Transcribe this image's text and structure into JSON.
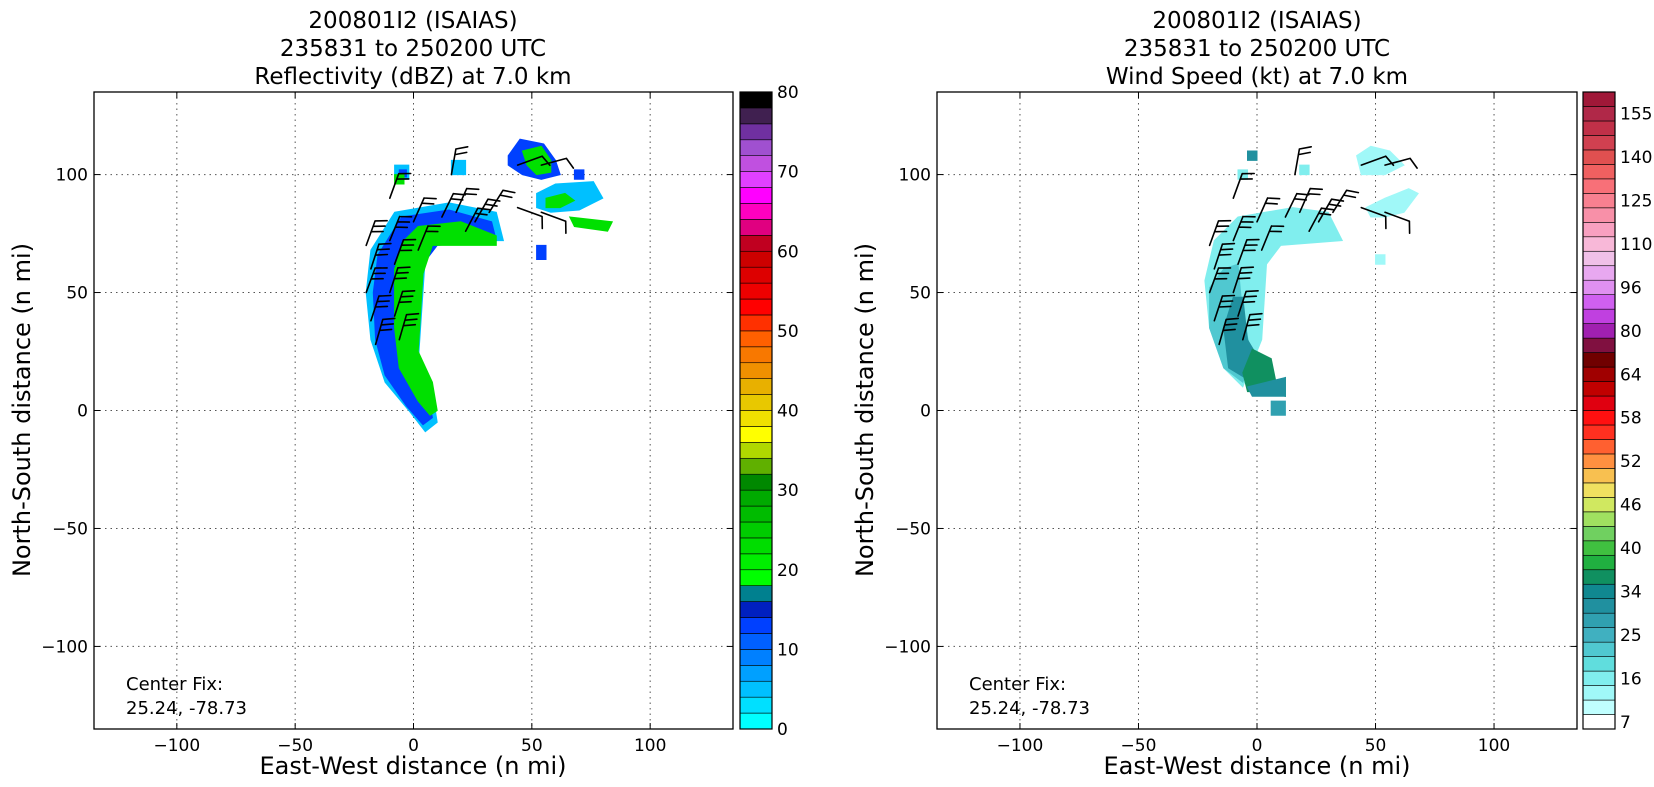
{
  "chart_data": [
    {
      "type": "heatmap",
      "panel": "reflectivity",
      "title_lines": [
        "200801I2 (ISAIAS)",
        "235831 to 250200 UTC",
        "Reflectivity (dBZ) at 7.0 km"
      ],
      "xlabel": "East-West distance (n mi)",
      "ylabel": "North-South distance (n mi)",
      "xlim": [
        -135,
        135
      ],
      "ylim": [
        -135,
        135
      ],
      "xticks": [
        -100,
        -50,
        0,
        50,
        100
      ],
      "yticks": [
        -100,
        -50,
        0,
        50,
        100
      ],
      "xtick_labels": [
        "−100",
        "−50",
        "0",
        "50",
        "100"
      ],
      "ytick_labels": [
        "−100",
        "−50",
        "0",
        "50",
        "100"
      ],
      "grid": true,
      "annotation_lines": [
        "Center Fix:",
        "25.24, -78.73"
      ],
      "colorbar": {
        "colors": [
          "#00ffff",
          "#00e0ff",
          "#00c0ff",
          "#00a0ff",
          "#0080ff",
          "#0060ff",
          "#0040ff",
          "#0020c0",
          "#00808f",
          "#00ff00",
          "#00ee00",
          "#00dd00",
          "#00cc00",
          "#00bb00",
          "#00aa00",
          "#008800",
          "#60b000",
          "#b0d800",
          "#ffff00",
          "#f0e000",
          "#e8c800",
          "#e8b000",
          "#f09000",
          "#f87800",
          "#ff6000",
          "#ff3000",
          "#ff0000",
          "#ee0000",
          "#dd0000",
          "#cc0000",
          "#c00020",
          "#e00080",
          "#ff00c0",
          "#ff00ff",
          "#e040ff",
          "#c050e0",
          "#a050d0",
          "#7030a0",
          "#402050",
          "#000000"
        ],
        "tick_values": [
          0,
          10,
          20,
          30,
          40,
          50,
          60,
          70,
          80
        ],
        "tick_labels": [
          "0",
          "10",
          "20",
          "30",
          "40",
          "50",
          "60",
          "70",
          "80"
        ]
      },
      "blobs": [
        {
          "c": "#00c0ff",
          "pts": [
            [
              -8,
              84
            ],
            [
              15,
              88
            ],
            [
              35,
              84
            ],
            [
              38,
              72
            ],
            [
              10,
              72
            ],
            [
              5,
              65
            ],
            [
              2,
              20
            ],
            [
              8,
              8
            ],
            [
              10,
              -5
            ],
            [
              5,
              -9
            ],
            [
              -2,
              0
            ],
            [
              -12,
              12
            ],
            [
              -18,
              30
            ],
            [
              -20,
              50
            ],
            [
              -18,
              68
            ]
          ]
        },
        {
          "c": "#0040ff",
          "pts": [
            [
              -5,
              82
            ],
            [
              15,
              85
            ],
            [
              33,
              80
            ],
            [
              35,
              72
            ],
            [
              10,
              70
            ],
            [
              4,
              62
            ],
            [
              1,
              20
            ],
            [
              6,
              8
            ],
            [
              8,
              -3
            ],
            [
              4,
              -6
            ],
            [
              -3,
              2
            ],
            [
              -12,
              15
            ],
            [
              -16,
              30
            ],
            [
              -17,
              50
            ],
            [
              -15,
              66
            ]
          ]
        },
        {
          "c": "#00e000",
          "pts": [
            [
              2,
              78
            ],
            [
              20,
              80
            ],
            [
              35,
              74
            ],
            [
              35,
              70
            ],
            [
              8,
              70
            ],
            [
              4,
              58
            ],
            [
              2,
              25
            ],
            [
              8,
              12
            ],
            [
              10,
              0
            ],
            [
              7,
              -2
            ],
            [
              2,
              4
            ],
            [
              -6,
              18
            ],
            [
              -8,
              35
            ],
            [
              -8,
              60
            ],
            [
              -4,
              72
            ]
          ]
        },
        {
          "c": "#00c0ff",
          "pts": [
            [
              -8,
              104
            ],
            [
              -2,
              104
            ],
            [
              -2,
              98
            ],
            [
              -8,
              98
            ]
          ]
        },
        {
          "c": "#0040ff",
          "pts": [
            [
              -6,
              102
            ],
            [
              -3,
              102
            ],
            [
              -3,
              99
            ],
            [
              -6,
              99
            ]
          ]
        },
        {
          "c": "#00c0ff",
          "pts": [
            [
              16,
              106
            ],
            [
              22,
              106
            ],
            [
              22,
              100
            ],
            [
              16,
              100
            ]
          ]
        },
        {
          "c": "#0040ff",
          "pts": [
            [
              40,
              108
            ],
            [
              45,
              115
            ],
            [
              55,
              113
            ],
            [
              60,
              106
            ],
            [
              62,
              100
            ],
            [
              54,
              98
            ],
            [
              46,
              100
            ],
            [
              40,
              104
            ]
          ]
        },
        {
          "c": "#00e000",
          "pts": [
            [
              46,
              110
            ],
            [
              54,
              112
            ],
            [
              58,
              106
            ],
            [
              58,
              101
            ],
            [
              52,
              100
            ],
            [
              48,
              104
            ]
          ]
        },
        {
          "c": "#00c0ff",
          "pts": [
            [
              52,
              92
            ],
            [
              60,
              96
            ],
            [
              76,
              97
            ],
            [
              80,
              90
            ],
            [
              70,
              85
            ],
            [
              58,
              84
            ],
            [
              52,
              86
            ]
          ]
        },
        {
          "c": "#00e000",
          "pts": [
            [
              56,
              90
            ],
            [
              64,
              92
            ],
            [
              68,
              89
            ],
            [
              62,
              86
            ],
            [
              56,
              86
            ]
          ]
        },
        {
          "c": "#00e000",
          "pts": [
            [
              66,
              82
            ],
            [
              84,
              80
            ],
            [
              82,
              76
            ],
            [
              68,
              78
            ]
          ]
        },
        {
          "c": "#0040ff",
          "pts": [
            [
              52,
              70
            ],
            [
              56,
              70
            ],
            [
              56,
              64
            ],
            [
              52,
              64
            ]
          ]
        },
        {
          "c": "#00e000",
          "pts": [
            [
              -8,
              100
            ],
            [
              -4,
              100
            ],
            [
              -4,
              96
            ],
            [
              -8,
              96
            ]
          ]
        },
        {
          "c": "#0040ff",
          "pts": [
            [
              68,
              102
            ],
            [
              72,
              102
            ],
            [
              72,
              98
            ],
            [
              68,
              98
            ]
          ]
        }
      ]
    },
    {
      "type": "heatmap",
      "panel": "wind-speed",
      "title_lines": [
        "200801I2 (ISAIAS)",
        "235831 to 250200 UTC",
        "Wind Speed (kt) at 7.0 km"
      ],
      "xlabel": "East-West distance (n mi)",
      "ylabel": "North-South distance (n mi)",
      "xlim": [
        -135,
        135
      ],
      "ylim": [
        -135,
        135
      ],
      "xticks": [
        -100,
        -50,
        0,
        50,
        100
      ],
      "yticks": [
        -100,
        -50,
        0,
        50,
        100
      ],
      "xtick_labels": [
        "−100",
        "−50",
        "0",
        "50",
        "100"
      ],
      "ytick_labels": [
        "−100",
        "−50",
        "0",
        "50",
        "100"
      ],
      "grid": true,
      "annotation_lines": [
        "Center Fix:",
        "25.24, -78.73"
      ],
      "colorbar": {
        "colors": [
          "#ffffff",
          "#c0ffff",
          "#a0f8f8",
          "#80eeee",
          "#60dddd",
          "#50c8d0",
          "#40b0c0",
          "#30a0b0",
          "#20909f",
          "#108890",
          "#109060",
          "#20b040",
          "#40c040",
          "#70d060",
          "#a0e060",
          "#d0e860",
          "#f0e060",
          "#f8c050",
          "#ff9040",
          "#ff6030",
          "#ff3020",
          "#ff1010",
          "#e00010",
          "#c00000",
          "#a00000",
          "#700000",
          "#801040",
          "#a020b0",
          "#c040e0",
          "#d060f0",
          "#e090f0",
          "#e8a8f0",
          "#f0c0e8",
          "#f8b8d8",
          "#f8a0c0",
          "#f890a8",
          "#f88090",
          "#f87078",
          "#f06060",
          "#e05050",
          "#d04050",
          "#c03048",
          "#b02848",
          "#a01838"
        ],
        "tick_values": [
          7,
          16,
          25,
          34,
          40,
          46,
          52,
          58,
          64,
          80,
          96,
          110,
          125,
          140,
          155
        ],
        "tick_labels": [
          "7",
          "16",
          "25",
          "34",
          "40",
          "46",
          "52",
          "58",
          "64",
          "80",
          "96",
          "110",
          "125",
          "140",
          "155"
        ]
      },
      "blobs": [
        {
          "c": "#80eeee",
          "pts": [
            [
              -8,
              82
            ],
            [
              15,
              86
            ],
            [
              30,
              84
            ],
            [
              36,
              72
            ],
            [
              10,
              70
            ],
            [
              4,
              62
            ],
            [
              2,
              30
            ],
            [
              -6,
              10
            ],
            [
              -14,
              18
            ],
            [
              -20,
              35
            ],
            [
              -22,
              55
            ],
            [
              -18,
              72
            ]
          ]
        },
        {
          "c": "#50c8d0",
          "pts": [
            [
              -14,
              60
            ],
            [
              -8,
              62
            ],
            [
              -6,
              40
            ],
            [
              -2,
              22
            ],
            [
              -6,
              12
            ],
            [
              -14,
              18
            ],
            [
              -20,
              35
            ],
            [
              -20,
              52
            ]
          ]
        },
        {
          "c": "#20909f",
          "pts": [
            [
              -10,
              48
            ],
            [
              -6,
              48
            ],
            [
              -4,
              30
            ],
            [
              2,
              20
            ],
            [
              -2,
              12
            ],
            [
              -12,
              18
            ],
            [
              -14,
              35
            ]
          ]
        },
        {
          "c": "#109060",
          "pts": [
            [
              -2,
              26
            ],
            [
              6,
              22
            ],
            [
              8,
              12
            ],
            [
              12,
              14
            ],
            [
              12,
              6
            ],
            [
              4,
              8
            ],
            [
              -4,
              8
            ],
            [
              -6,
              16
            ]
          ]
        },
        {
          "c": "#20909f",
          "pts": [
            [
              -4,
              10
            ],
            [
              12,
              14
            ],
            [
              12,
              6
            ],
            [
              4,
              6
            ],
            [
              -2,
              6
            ]
          ]
        },
        {
          "c": "#30a0b0",
          "pts": [
            [
              6,
              4
            ],
            [
              12,
              4
            ],
            [
              12,
              -2
            ],
            [
              6,
              -2
            ]
          ]
        },
        {
          "c": "#20909f",
          "pts": [
            [
              -4,
              110
            ],
            [
              0,
              110
            ],
            [
              0,
              106
            ],
            [
              -4,
              106
            ]
          ]
        },
        {
          "c": "#80eeee",
          "pts": [
            [
              -8,
              102
            ],
            [
              -4,
              102
            ],
            [
              -4,
              98
            ],
            [
              -8,
              98
            ]
          ]
        },
        {
          "c": "#80eeee",
          "pts": [
            [
              18,
              104
            ],
            [
              22,
              104
            ],
            [
              22,
              100
            ],
            [
              18,
              100
            ]
          ]
        },
        {
          "c": "#a0f8f8",
          "pts": [
            [
              42,
              108
            ],
            [
              48,
              112
            ],
            [
              56,
              110
            ],
            [
              62,
              104
            ],
            [
              54,
              100
            ],
            [
              44,
              100
            ]
          ]
        },
        {
          "c": "#a0f8f8",
          "pts": [
            [
              46,
              86
            ],
            [
              54,
              90
            ],
            [
              64,
              94
            ],
            [
              68,
              92
            ],
            [
              62,
              84
            ],
            [
              54,
              82
            ],
            [
              48,
              82
            ]
          ]
        },
        {
          "c": "#a0f8f8",
          "pts": [
            [
              50,
              66
            ],
            [
              54,
              66
            ],
            [
              54,
              62
            ],
            [
              50,
              62
            ]
          ]
        }
      ]
    }
  ]
}
